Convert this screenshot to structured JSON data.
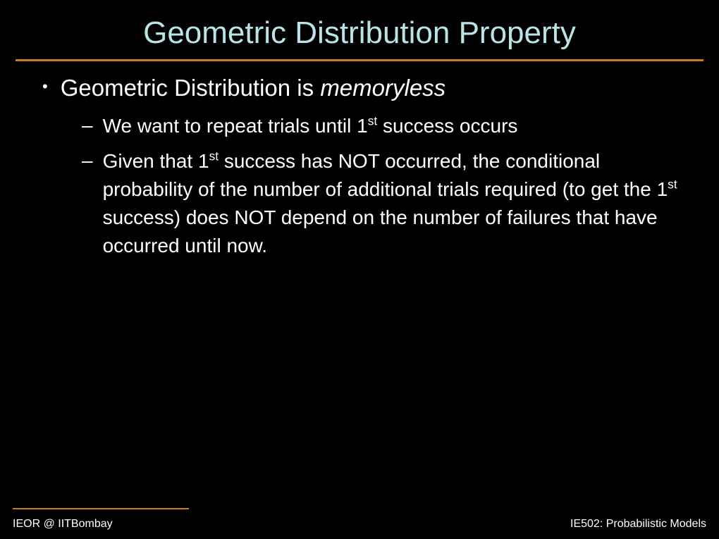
{
  "title": "Geometric Distribution Property",
  "colors": {
    "background": "#000000",
    "title": "#b8e4e8",
    "body_text": "#ffffff",
    "accent_line": "#cc7a1f"
  },
  "typography": {
    "title_fontsize": 44,
    "main_bullet_fontsize": 33,
    "sub_bullet_fontsize": 28,
    "footer_fontsize": 16,
    "font_family": "Arial"
  },
  "main_bullet": {
    "prefix": "Geometric Distribution is ",
    "italic_word": "memoryless"
  },
  "sub_bullets": [
    {
      "pre1": "We want to repeat trials until 1",
      "sup1": "st",
      "post1": " success occurs"
    },
    {
      "pre1": "Given that 1",
      "sup1": "st",
      "mid1": " success has NOT occurred, the conditional probability of the number of additional trials required (to get the 1",
      "sup2": "st",
      "post1": " success) does NOT depend on the number of failures that have occurred until now."
    }
  ],
  "footer": {
    "left": "IEOR @ IITBombay",
    "right": "IE502: Probabilistic Models"
  }
}
